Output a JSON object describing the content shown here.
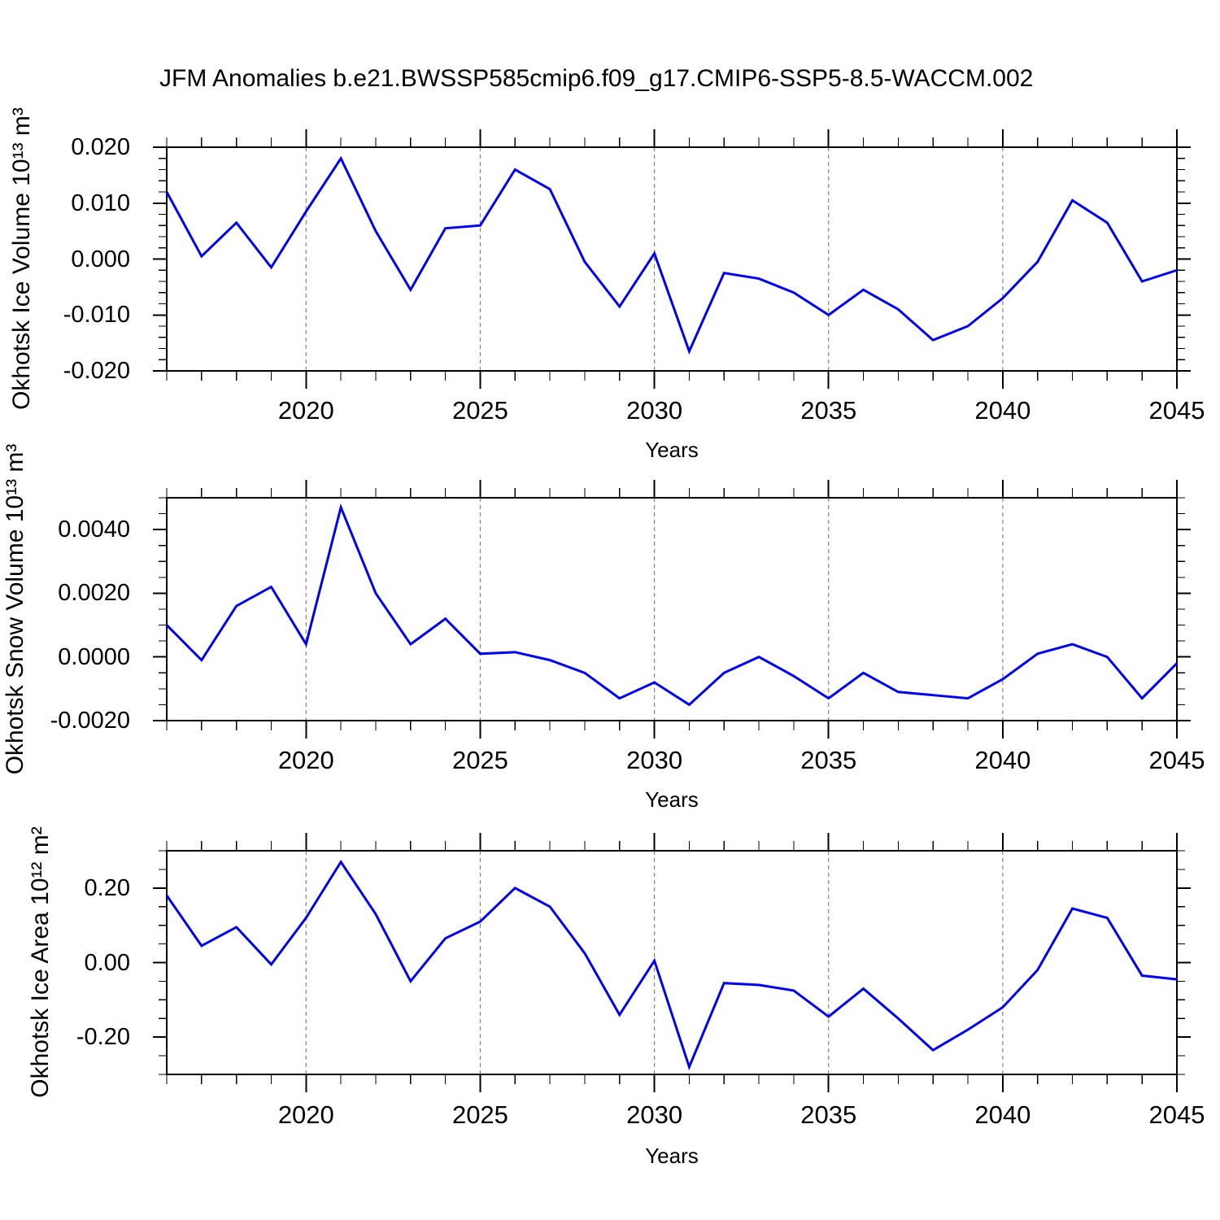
{
  "title": "JFM Anomalies b.e21.BWSSP585cmip6.f09_g17.CMIP6-SSP5-8.5-WACCM.002",
  "line_color": "#0000ee",
  "grid_color": "#848484",
  "axis_color": "#000000",
  "chart_data": [
    {
      "type": "line",
      "panel": "okhotsk-ice-volume",
      "ylabel": "Okhotsk Ice Volume 10¹³ m³",
      "xlabel": "Years",
      "x": [
        2016,
        2017,
        2018,
        2019,
        2020,
        2021,
        2022,
        2023,
        2024,
        2025,
        2026,
        2027,
        2028,
        2029,
        2030,
        2031,
        2032,
        2033,
        2034,
        2035,
        2036,
        2037,
        2038,
        2039,
        2040,
        2041,
        2042,
        2043,
        2044,
        2045
      ],
      "values": [
        0.012,
        0.0005,
        0.0065,
        -0.0015,
        0.0085,
        0.018,
        0.005,
        -0.0055,
        0.0055,
        0.006,
        0.016,
        0.0125,
        -0.0005,
        -0.0085,
        0.001,
        -0.0165,
        -0.0025,
        -0.0035,
        -0.006,
        -0.01,
        -0.0055,
        -0.009,
        -0.0145,
        -0.012,
        -0.007,
        -0.0005,
        0.0105,
        0.0065,
        -0.004,
        -0.002
      ],
      "xlim": [
        2016,
        2045
      ],
      "ylim": [
        -0.02,
        0.02
      ],
      "ytick_values": [
        0.02,
        0.01,
        0.0,
        -0.01,
        -0.02
      ],
      "ytick_labels": [
        "0.020",
        "0.010",
        "0.000",
        "-0.010",
        "-0.020"
      ],
      "y_minor_step": 0.002,
      "xticks": [
        2020,
        2025,
        2030,
        2035,
        2040,
        2045
      ],
      "xtick_labels": [
        "2020",
        "2025",
        "2030",
        "2035",
        "2040",
        "2045"
      ],
      "x_minor_step": 1,
      "grid": "vertical-dashed-at-major-x"
    },
    {
      "type": "line",
      "panel": "okhotsk-snow-volume",
      "ylabel": "Okhotsk Snow Volume 10¹³ m³",
      "xlabel": "Years",
      "x": [
        2016,
        2017,
        2018,
        2019,
        2020,
        2021,
        2022,
        2023,
        2024,
        2025,
        2026,
        2027,
        2028,
        2029,
        2030,
        2031,
        2032,
        2033,
        2034,
        2035,
        2036,
        2037,
        2038,
        2039,
        2040,
        2041,
        2042,
        2043,
        2044,
        2045
      ],
      "values": [
        0.001,
        -0.0001,
        0.0016,
        0.0022,
        0.0004,
        0.0047,
        0.002,
        0.0004,
        0.0012,
        0.0001,
        0.00015,
        -0.0001,
        -0.0005,
        -0.0013,
        -0.0008,
        -0.0015,
        -0.0005,
        0.0,
        -0.0006,
        -0.0013,
        -0.0005,
        -0.0011,
        -0.0012,
        -0.0013,
        -0.0007,
        0.0001,
        0.0004,
        0.0,
        -0.0013,
        -0.0002
      ],
      "xlim": [
        2016,
        2045
      ],
      "ylim": [
        -0.002,
        0.005
      ],
      "ytick_values": [
        0.004,
        0.002,
        0.0,
        -0.002
      ],
      "ytick_labels": [
        "0.0040",
        "0.0020",
        "0.0000",
        "-0.0020"
      ],
      "y_minor_step": 0.0005,
      "xticks": [
        2020,
        2025,
        2030,
        2035,
        2040,
        2045
      ],
      "xtick_labels": [
        "2020",
        "2025",
        "2030",
        "2035",
        "2040",
        "2045"
      ],
      "x_minor_step": 1,
      "grid": "vertical-dashed-at-major-x"
    },
    {
      "type": "line",
      "panel": "okhotsk-ice-area",
      "ylabel": "Okhotsk Ice Area 10¹² m²",
      "xlabel": "Years",
      "x": [
        2016,
        2017,
        2018,
        2019,
        2020,
        2021,
        2022,
        2023,
        2024,
        2025,
        2026,
        2027,
        2028,
        2029,
        2030,
        2031,
        2032,
        2033,
        2034,
        2035,
        2036,
        2037,
        2038,
        2039,
        2040,
        2041,
        2042,
        2043,
        2044,
        2045
      ],
      "values": [
        0.18,
        0.045,
        0.095,
        -0.005,
        0.12,
        0.27,
        0.13,
        -0.05,
        0.065,
        0.11,
        0.2,
        0.15,
        0.025,
        -0.14,
        0.005,
        -0.28,
        -0.055,
        -0.06,
        -0.075,
        -0.145,
        -0.07,
        -0.15,
        -0.235,
        -0.18,
        -0.12,
        -0.02,
        0.145,
        0.12,
        -0.035,
        -0.045
      ],
      "xlim": [
        2016,
        2045
      ],
      "ylim": [
        -0.3,
        0.3
      ],
      "ytick_values": [
        0.2,
        0.0,
        -0.2
      ],
      "ytick_labels": [
        "0.20",
        "0.00",
        "-0.20"
      ],
      "y_minor_step": 0.05,
      "xticks": [
        2020,
        2025,
        2030,
        2035,
        2040,
        2045
      ],
      "xtick_labels": [
        "2020",
        "2025",
        "2030",
        "2035",
        "2040",
        "2045"
      ],
      "x_minor_step": 1,
      "grid": "vertical-dashed-at-major-x"
    }
  ]
}
